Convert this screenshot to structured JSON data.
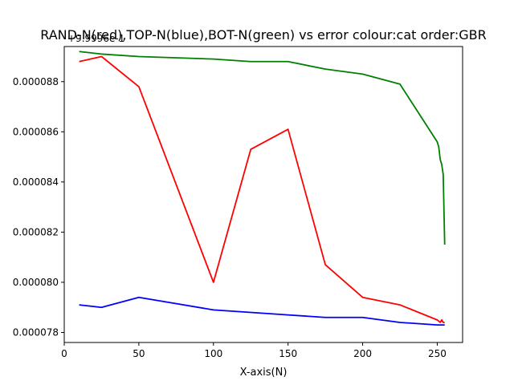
{
  "chart_data": {
    "type": "line",
    "title": "RAND-N(red),TOP-N(blue),BOT-N(green) vs error colour:cat order:GBR",
    "xlabel": "X-axis(N)",
    "ylabel": "",
    "offset_label": "+9.9996e-1",
    "xlim": [
      0,
      267
    ],
    "ylim": [
      7.76e-05,
      8.94e-05
    ],
    "xticks": [
      0,
      50,
      100,
      150,
      200,
      250
    ],
    "yticks": [
      7.8e-05,
      8e-05,
      8.2e-05,
      8.4e-05,
      8.6e-05,
      8.8e-05
    ],
    "ytick_labels": [
      "0.000078",
      "0.000080",
      "0.000082",
      "0.000084",
      "0.000086",
      "0.000088"
    ],
    "grid": false,
    "series": [
      {
        "color": "#ff0000",
        "x": [
          10,
          25,
          50,
          100,
          125,
          150,
          175,
          200,
          225,
          250,
          252,
          253,
          254,
          255
        ],
        "y": [
          8.88e-05,
          8.9e-05,
          8.78e-05,
          8e-05,
          8.53e-05,
          8.61e-05,
          8.07e-05,
          7.94e-05,
          7.91e-05,
          7.85e-05,
          7.84e-05,
          7.85e-05,
          7.84e-05,
          7.84e-05
        ]
      },
      {
        "color": "#0000ff",
        "x": [
          10,
          25,
          50,
          100,
          125,
          150,
          175,
          200,
          225,
          250,
          255
        ],
        "y": [
          7.91e-05,
          7.9e-05,
          7.94e-05,
          7.89e-05,
          7.88e-05,
          7.87e-05,
          7.86e-05,
          7.86e-05,
          7.84e-05,
          7.83e-05,
          7.83e-05
        ]
      },
      {
        "color": "#008000",
        "x": [
          10,
          25,
          50,
          100,
          125,
          150,
          175,
          200,
          225,
          250,
          251,
          252,
          253,
          254,
          255
        ],
        "y": [
          8.92e-05,
          8.91e-05,
          8.9e-05,
          8.89e-05,
          8.88e-05,
          8.88e-05,
          8.85e-05,
          8.83e-05,
          8.79e-05,
          8.56e-05,
          8.54e-05,
          8.49e-05,
          8.47e-05,
          8.43e-05,
          8.15e-05
        ]
      }
    ]
  }
}
